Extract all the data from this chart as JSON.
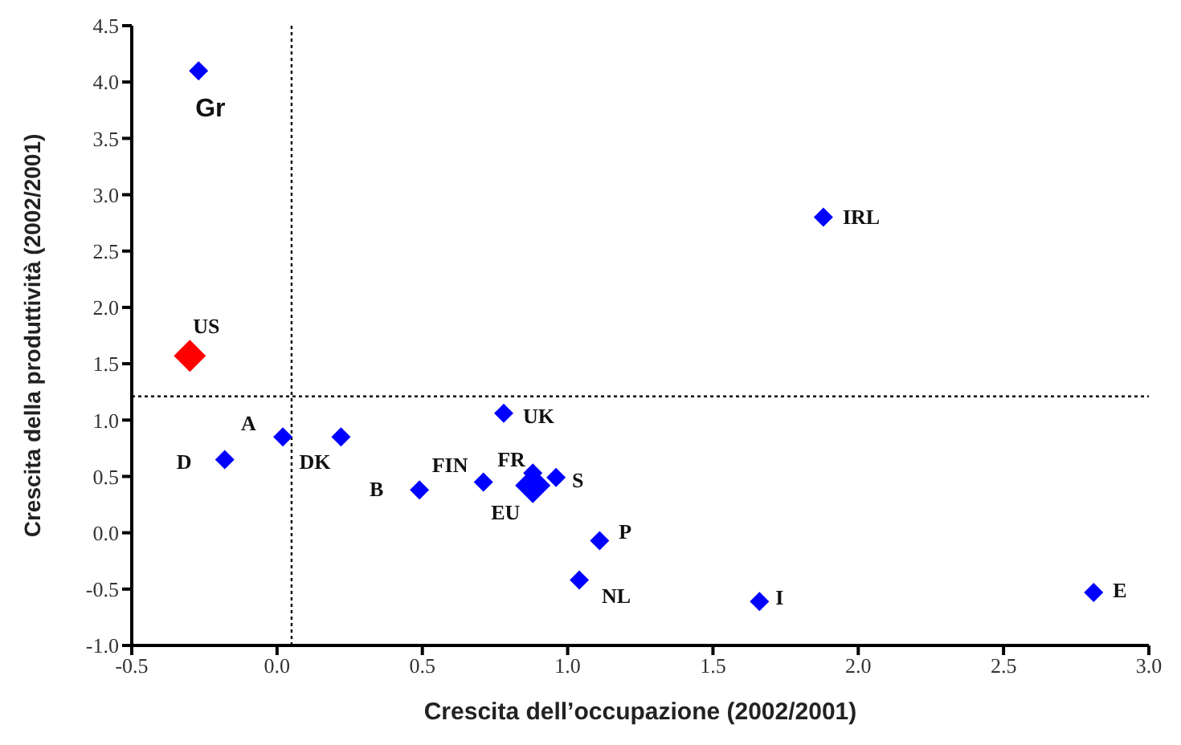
{
  "chart_data": {
    "type": "scatter",
    "xlabel": "Crescita dell’occupazione (2002/2001)",
    "ylabel": "Crescita della produttività  (2002/2001)",
    "marker": "diamond",
    "xlim": [
      -0.5,
      3.0
    ],
    "xticks": [
      {
        "value": -0.5,
        "label": "-0.5"
      },
      {
        "value": 0,
        "label": "0.0"
      },
      {
        "value": 0.5,
        "label": "0.5"
      },
      {
        "value": 1,
        "label": "1.0"
      },
      {
        "value": 1.5,
        "label": "1.5"
      },
      {
        "value": 2,
        "label": "2.0"
      },
      {
        "value": 2.5,
        "label": "2.5"
      },
      {
        "value": 3,
        "label": "3.0"
      }
    ],
    "ylim": [
      -1.0,
      4.5
    ],
    "yticks": [
      {
        "value": -1,
        "label": "-1.0"
      },
      {
        "value": -0.5,
        "label": "-0.5"
      },
      {
        "value": 0,
        "label": "0.0"
      },
      {
        "value": 0.5,
        "label": "0.5"
      },
      {
        "value": 1,
        "label": "1.0"
      },
      {
        "value": 1.5,
        "label": "1.5"
      },
      {
        "value": 2,
        "label": "2.0"
      },
      {
        "value": 2.5,
        "label": "2.5"
      },
      {
        "value": 3,
        "label": "3.0"
      },
      {
        "value": 3.5,
        "label": "3.5"
      },
      {
        "value": 4,
        "label": "4.0"
      },
      {
        "value": 4.5,
        "label": "4.5"
      }
    ],
    "series": [
      {
        "color": "#0000ff",
        "x": [
          0.88
        ],
        "values": [
          0.42
        ]
      },
      {
        "color": "#0000ff",
        "x": [
          -0.27,
          -0.18,
          0.02,
          0.22,
          0.49,
          0.71,
          0.88,
          0.96,
          0.78,
          1.11,
          1.04,
          1.66,
          2.81,
          1.88
        ],
        "values": [
          4.1,
          0.65,
          0.85,
          0.85,
          0.38,
          0.45,
          0.53,
          0.49,
          1.06,
          -0.07,
          -0.42,
          -0.61,
          -0.53,
          2.8
        ]
      },
      {
        "color": "#ff0000",
        "x": [
          -0.3
        ],
        "values": [
          1.57
        ]
      }
    ],
    "ref_lines": [
      {
        "axis": "x",
        "value": 0.05,
        "line_style": "dotted",
        "color": "#000000"
      },
      {
        "axis": "y",
        "value": 1.21,
        "line_style": "dotted",
        "color": "#000000"
      }
    ],
    "annotations": [
      {
        "text": "Gr",
        "x": -0.27,
        "y": 4.1
      },
      {
        "text": "D",
        "x": -0.18,
        "y": 0.65
      },
      {
        "text": "A",
        "x": 0.02,
        "y": 0.85
      },
      {
        "text": "DK",
        "x": 0.22,
        "y": 0.85
      },
      {
        "text": "B",
        "x": 0.49,
        "y": 0.38
      },
      {
        "text": "FIN",
        "x": 0.71,
        "y": 0.45
      },
      {
        "text": "FR",
        "x": 0.88,
        "y": 0.53
      },
      {
        "text": "S",
        "x": 0.96,
        "y": 0.49
      },
      {
        "text": "UK",
        "x": 0.78,
        "y": 1.06
      },
      {
        "text": "P",
        "x": 1.11,
        "y": -0.07
      },
      {
        "text": "NL",
        "x": 1.04,
        "y": -0.42
      },
      {
        "text": "I",
        "x": 1.66,
        "y": -0.61
      },
      {
        "text": "E",
        "x": 2.81,
        "y": -0.53
      },
      {
        "text": "IRL",
        "x": 1.88,
        "y": 2.8
      },
      {
        "text": "EU",
        "x": 0.88,
        "y": 0.42
      },
      {
        "text": "US",
        "x": -0.3,
        "y": 1.57
      }
    ]
  }
}
